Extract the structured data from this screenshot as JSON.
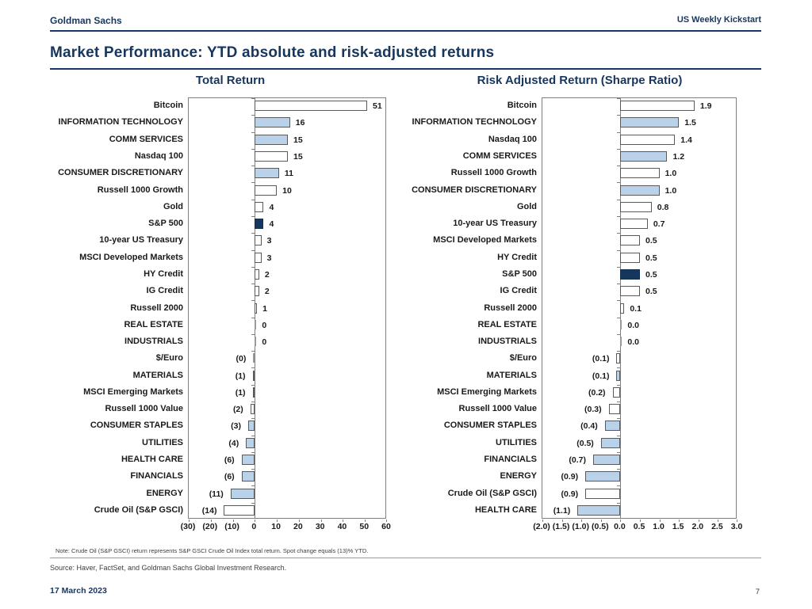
{
  "header": {
    "left": "Goldman Sachs",
    "right": "US Weekly Kickstart"
  },
  "page_title": "Market Performance: YTD absolute and risk-adjusted returns",
  "colors": {
    "navy": "#17365d",
    "light_blue": "#b9d2ea",
    "bar_border": "#595959",
    "axis_gray": "#7f7f7f"
  },
  "footer": {
    "note": "Note: Crude Oil (S&P GSCI) return represents S&P GSCI Crude Oil Index total return. Spot change equals (13)% YTD.",
    "source": "Source: Haver, FactSet, and Goldman Sachs Global Investment Research.",
    "date": "17 March 2023",
    "page_number": "7"
  },
  "chart_data": [
    {
      "type": "bar",
      "orientation": "horizontal",
      "title": "Total Return",
      "xlabel": "",
      "ylabel": "",
      "xlim": [
        -30,
        60
      ],
      "grid": false,
      "legend": "none",
      "x_ticks": [
        "(30)",
        "(20)",
        "(10)",
        "0",
        "10",
        "20",
        "30",
        "40",
        "50",
        "60"
      ],
      "x_tick_values": [
        -30,
        -20,
        -10,
        0,
        10,
        20,
        30,
        40,
        50,
        60
      ],
      "rows": [
        {
          "label": "Bitcoin",
          "value": 51,
          "display": "51",
          "style": "white"
        },
        {
          "label": "INFORMATION TECHNOLOGY",
          "value": 16,
          "display": "16",
          "style": "blue"
        },
        {
          "label": "COMM SERVICES",
          "value": 15,
          "display": "15",
          "style": "blue"
        },
        {
          "label": "Nasdaq 100",
          "value": 15,
          "display": "15",
          "style": "white"
        },
        {
          "label": "CONSUMER DISCRETIONARY",
          "value": 11,
          "display": "11",
          "style": "blue"
        },
        {
          "label": "Russell 1000 Growth",
          "value": 10,
          "display": "10",
          "style": "white"
        },
        {
          "label": "Gold",
          "value": 4,
          "display": "4",
          "style": "white"
        },
        {
          "label": "S&P 500",
          "value": 4,
          "display": "4",
          "style": "navy"
        },
        {
          "label": "10-year US Treasury",
          "value": 3,
          "display": "3",
          "style": "white"
        },
        {
          "label": "MSCI Developed Markets",
          "value": 3,
          "display": "3",
          "style": "white"
        },
        {
          "label": "HY Credit",
          "value": 2,
          "display": "2",
          "style": "white"
        },
        {
          "label": "IG Credit",
          "value": 2,
          "display": "2",
          "style": "white"
        },
        {
          "label": "Russell 2000",
          "value": 1,
          "display": "1",
          "style": "white"
        },
        {
          "label": "REAL ESTATE",
          "value": 0,
          "display": "0",
          "style": "zero"
        },
        {
          "label": "INDUSTRIALS",
          "value": 0,
          "display": "0",
          "style": "zero"
        },
        {
          "label": "$/Euro",
          "value": -0.3,
          "display": "(0)",
          "style": "zero"
        },
        {
          "label": "MATERIALS",
          "value": -1,
          "display": "(1)",
          "style": "blue"
        },
        {
          "label": "MSCI Emerging Markets",
          "value": -1,
          "display": "(1)",
          "style": "white"
        },
        {
          "label": "Russell 1000 Value",
          "value": -2,
          "display": "(2)",
          "style": "white"
        },
        {
          "label": "CONSUMER STAPLES",
          "value": -3,
          "display": "(3)",
          "style": "blue"
        },
        {
          "label": "UTILITIES",
          "value": -4,
          "display": "(4)",
          "style": "blue"
        },
        {
          "label": "HEALTH CARE",
          "value": -6,
          "display": "(6)",
          "style": "blue"
        },
        {
          "label": "FINANCIALS",
          "value": -6,
          "display": "(6)",
          "style": "blue"
        },
        {
          "label": "ENERGY",
          "value": -11,
          "display": "(11)",
          "style": "blue"
        },
        {
          "label": "Crude Oil (S&P GSCI)",
          "value": -14,
          "display": "(14)",
          "style": "white"
        }
      ]
    },
    {
      "type": "bar",
      "orientation": "horizontal",
      "title": "Risk Adjusted Return (Sharpe Ratio)",
      "xlabel": "",
      "ylabel": "",
      "xlim": [
        -2.0,
        3.0
      ],
      "grid": false,
      "legend": "none",
      "x_ticks": [
        "(2.0)",
        "(1.5)",
        "(1.0)",
        "(0.5)",
        "0.0",
        "0.5",
        "1.0",
        "1.5",
        "2.0",
        "2.5",
        "3.0"
      ],
      "x_tick_values": [
        -2.0,
        -1.5,
        -1.0,
        -0.5,
        0.0,
        0.5,
        1.0,
        1.5,
        2.0,
        2.5,
        3.0
      ],
      "rows": [
        {
          "label": "Bitcoin",
          "value": 1.9,
          "display": "1.9",
          "style": "white"
        },
        {
          "label": "INFORMATION TECHNOLOGY",
          "value": 1.5,
          "display": "1.5",
          "style": "blue"
        },
        {
          "label": "Nasdaq 100",
          "value": 1.4,
          "display": "1.4",
          "style": "white"
        },
        {
          "label": "COMM SERVICES",
          "value": 1.2,
          "display": "1.2",
          "style": "blue"
        },
        {
          "label": "Russell 1000 Growth",
          "value": 1.0,
          "display": "1.0",
          "style": "white"
        },
        {
          "label": "CONSUMER DISCRETIONARY",
          "value": 1.0,
          "display": "1.0",
          "style": "blue"
        },
        {
          "label": "Gold",
          "value": 0.8,
          "display": "0.8",
          "style": "white"
        },
        {
          "label": "10-year US Treasury",
          "value": 0.7,
          "display": "0.7",
          "style": "white"
        },
        {
          "label": "MSCI Developed Markets",
          "value": 0.5,
          "display": "0.5",
          "style": "white"
        },
        {
          "label": "HY Credit",
          "value": 0.5,
          "display": "0.5",
          "style": "white"
        },
        {
          "label": "S&P 500",
          "value": 0.5,
          "display": "0.5",
          "style": "navy"
        },
        {
          "label": "IG Credit",
          "value": 0.5,
          "display": "0.5",
          "style": "white"
        },
        {
          "label": "Russell 2000",
          "value": 0.1,
          "display": "0.1",
          "style": "white"
        },
        {
          "label": "REAL ESTATE",
          "value": 0,
          "display": "0.0",
          "style": "zero"
        },
        {
          "label": "INDUSTRIALS",
          "value": 0,
          "display": "0.0",
          "style": "zero"
        },
        {
          "label": "$/Euro",
          "value": -0.1,
          "display": "(0.1)",
          "style": "white"
        },
        {
          "label": "MATERIALS",
          "value": -0.1,
          "display": "(0.1)",
          "style": "blue"
        },
        {
          "label": "MSCI Emerging Markets",
          "value": -0.2,
          "display": "(0.2)",
          "style": "white"
        },
        {
          "label": "Russell 1000 Value",
          "value": -0.3,
          "display": "(0.3)",
          "style": "white"
        },
        {
          "label": "CONSUMER STAPLES",
          "value": -0.4,
          "display": "(0.4)",
          "style": "blue"
        },
        {
          "label": "UTILITIES",
          "value": -0.5,
          "display": "(0.5)",
          "style": "blue"
        },
        {
          "label": "FINANCIALS",
          "value": -0.7,
          "display": "(0.7)",
          "style": "blue"
        },
        {
          "label": "ENERGY",
          "value": -0.9,
          "display": "(0.9)",
          "style": "blue"
        },
        {
          "label": "Crude Oil (S&P GSCI)",
          "value": -0.9,
          "display": "(0.9)",
          "style": "white"
        },
        {
          "label": "HEALTH CARE",
          "value": -1.1,
          "display": "(1.1)",
          "style": "blue"
        }
      ]
    }
  ]
}
